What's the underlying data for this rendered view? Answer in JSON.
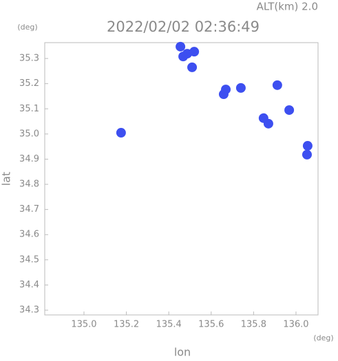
{
  "chart_data": {
    "type": "scatter",
    "title": "2022/02/02 02:36:49",
    "subtitle": "ALT(km)  2.0",
    "y_unit": "(deg)",
    "x_unit": "(deg)",
    "x_label": "lon",
    "y_label": "lat",
    "xlim": [
      134.815,
      136.104
    ],
    "ylim": [
      34.281,
      35.363
    ],
    "xticks": [
      {
        "value": 135.0,
        "label": "135.0"
      },
      135.2,
      135.4,
      135.6,
      135.8,
      {
        "value": 136.0,
        "label": "136.0"
      }
    ],
    "yticks": [
      34.3,
      34.4,
      34.5,
      34.6,
      34.7,
      34.8,
      34.9,
      {
        "value": 35.0,
        "label": "35.0"
      },
      35.1,
      35.2,
      35.3
    ],
    "series": [
      {
        "color": "#3d4ff0",
        "x": [
          135.455,
          135.487,
          135.52,
          135.468,
          135.51,
          135.659,
          135.669,
          135.74,
          135.912,
          135.968,
          135.87,
          135.847,
          136.055,
          136.052,
          135.175
        ],
        "y": [
          35.347,
          35.319,
          35.327,
          35.308,
          35.265,
          35.158,
          35.177,
          35.183,
          35.194,
          35.095,
          35.041,
          35.063,
          34.953,
          34.918,
          35.005
        ]
      }
    ]
  }
}
